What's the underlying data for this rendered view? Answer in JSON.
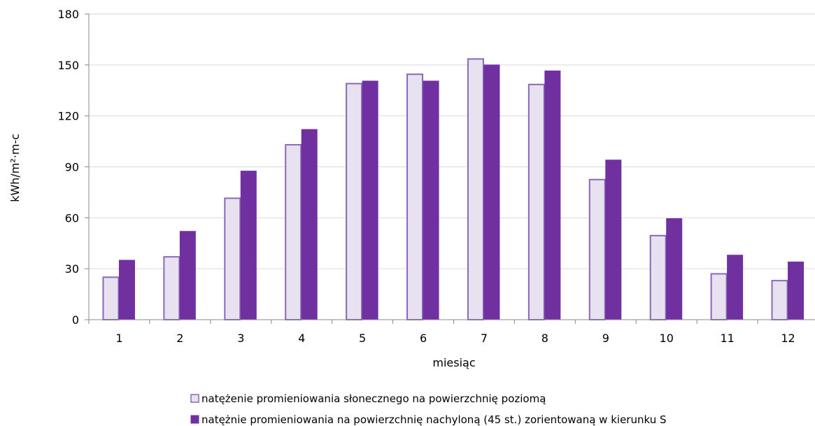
{
  "chart_data": {
    "type": "bar",
    "categories": [
      "1",
      "2",
      "3",
      "4",
      "5",
      "6",
      "7",
      "8",
      "9",
      "10",
      "11",
      "12"
    ],
    "series": [
      {
        "name": "natężenie promieniowania słonecznego na powierzchnię poziomą",
        "values": [
          25,
          37,
          71.5,
          103,
          139,
          144.5,
          153.5,
          138.5,
          82.5,
          49.5,
          27,
          23
        ],
        "fill": "#e8e2f0",
        "stroke": "#8a68b8"
      },
      {
        "name": "natężnie promieniowania na powierzchnię nachyloną (45 st.) zorientowaną w kierunku S",
        "values": [
          35,
          52,
          87.5,
          112,
          140.5,
          140.5,
          150,
          146.5,
          94,
          59.5,
          38,
          34
        ],
        "fill": "#7030a0",
        "stroke": "#7030a0"
      }
    ],
    "xlabel": "miesiąc",
    "ylabel": "kWh/m²·m-c",
    "ylim": [
      0,
      180
    ],
    "yticks": [
      "0",
      "30",
      "60",
      "90",
      "120",
      "150",
      "180"
    ],
    "grid": true,
    "legend_position": "bottom"
  }
}
